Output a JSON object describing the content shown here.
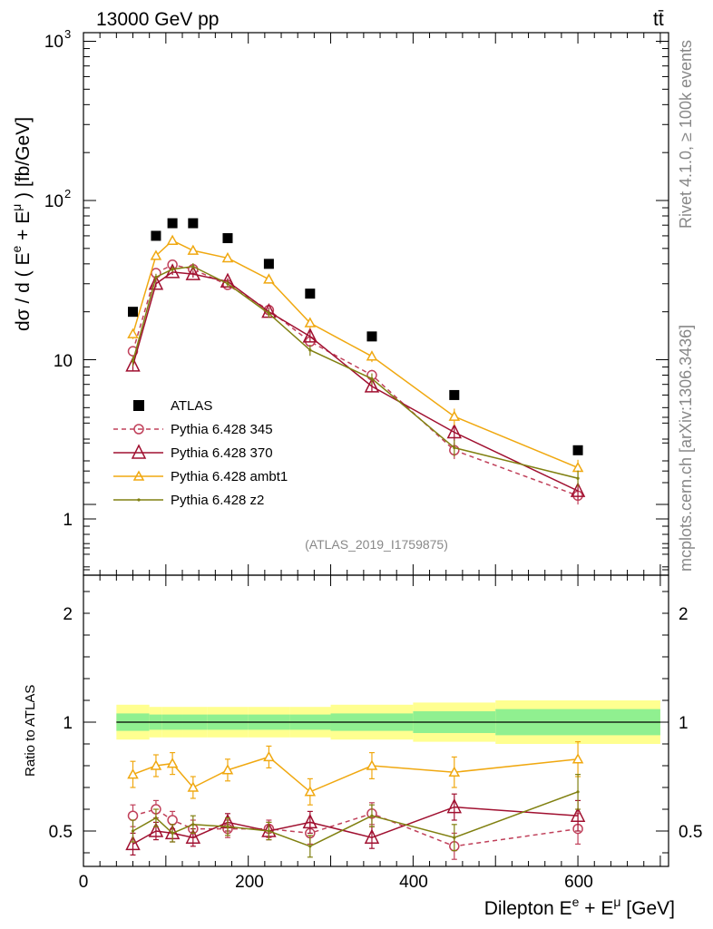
{
  "header": {
    "energy_label": "13000 GeV pp",
    "process_label": "tt̄"
  },
  "side_text": {
    "rivet": "Rivet 4.1.0, ≥ 100k events",
    "mcplots": "mcplots.cern.ch [arXiv:1306.3436]"
  },
  "colors": {
    "atlas": "#000000",
    "p345": "#c0405a",
    "p370": "#a01030",
    "ambt1": "#f0a810",
    "z2": "#808010",
    "band_green": "#90f090",
    "band_yellow": "#ffff90"
  },
  "chart_data": {
    "type": "line",
    "analysis_id": "(ATLAS_2019_I1759875)",
    "xlabel": "Dilepton E^e + E^μ [GeV]",
    "xlabel_main": "Dilepton E",
    "xlabel_sup1": "e",
    "xlabel_plus": " + E",
    "xlabel_sup2": "μ",
    "xlabel_unit": " [GeV]",
    "ylabel": "dσ / d ( E^e + E^μ ) [fb/GeV]",
    "ylabel_pre": "dσ / d ( E",
    "ylabel_sup1": "e",
    "ylabel_mid": " + E",
    "ylabel_sup2": "μ",
    "ylabel_post": " ) [fb/GeV]",
    "ratio_ylabel": "Ratio to ATLAS",
    "xlim": [
      0,
      710
    ],
    "ylim": [
      0.45,
      1100
    ],
    "yscale": "log",
    "ratio_ylim": [
      0.4,
      2.4
    ],
    "x_ticks": [
      0,
      200,
      400,
      600
    ],
    "x_tick_labels": [
      "0",
      "200",
      "400",
      "600"
    ],
    "y_tick_labels": {
      "t1": "1",
      "t10": "10",
      "t100": "10",
      "t100_exp": "2",
      "t1000": "10",
      "t1000_exp": "3"
    },
    "ratio_tick_labels": [
      "0.5",
      "1",
      "2"
    ],
    "ratio_ticks": [
      0.5,
      1,
      2
    ],
    "x": [
      60,
      88,
      108,
      133,
      175,
      225,
      275,
      350,
      450,
      600
    ],
    "bin_edges": [
      40,
      80,
      95,
      120,
      150,
      200,
      250,
      300,
      400,
      500,
      700
    ],
    "atlas": {
      "name": "ATLAS",
      "values": [
        20,
        60,
        72,
        72,
        58,
        40,
        26,
        14,
        6,
        2.7
      ]
    },
    "ratio_band": {
      "inner": [
        0.04,
        0.035,
        0.035,
        0.035,
        0.035,
        0.035,
        0.035,
        0.04,
        0.05,
        0.06
      ],
      "outer": [
        0.08,
        0.07,
        0.07,
        0.07,
        0.07,
        0.07,
        0.07,
        0.08,
        0.09,
        0.1
      ]
    },
    "series": [
      {
        "name": "Pythia 6.428 345",
        "values": [
          11.3,
          35,
          39.5,
          37,
          29.5,
          20.5,
          13,
          8.0,
          2.7,
          1.4
        ],
        "errors": [
          0.07,
          0.05,
          0.04,
          0.05,
          0.05,
          0.06,
          0.08,
          0.08,
          0.12,
          0.12
        ],
        "ratio": [
          0.57,
          0.6,
          0.55,
          0.51,
          0.51,
          0.51,
          0.49,
          0.58,
          0.43,
          0.51
        ],
        "ratio_errors": [
          0.05,
          0.04,
          0.04,
          0.04,
          0.04,
          0.04,
          0.05,
          0.05,
          0.06,
          0.07
        ],
        "color": "#c0405a",
        "dashed": true,
        "marker": "circle"
      },
      {
        "name": "Pythia 6.428 370",
        "values": [
          9.2,
          30,
          35.5,
          34.5,
          31,
          20,
          14,
          6.8,
          3.5,
          1.5
        ],
        "errors": [
          0.07,
          0.05,
          0.04,
          0.05,
          0.05,
          0.06,
          0.08,
          0.08,
          0.12,
          0.12
        ],
        "ratio": [
          0.44,
          0.5,
          0.49,
          0.47,
          0.54,
          0.5,
          0.54,
          0.47,
          0.61,
          0.57
        ],
        "ratio_errors": [
          0.05,
          0.04,
          0.04,
          0.04,
          0.04,
          0.04,
          0.05,
          0.05,
          0.06,
          0.07
        ],
        "color": "#a01030",
        "dashed": false,
        "marker": "triangle-large"
      },
      {
        "name": "Pythia 6.428 ambt1",
        "values": [
          14.5,
          45,
          56,
          48.5,
          43.5,
          32,
          17,
          10.5,
          4.4,
          2.1
        ],
        "errors": [
          0.07,
          0.05,
          0.04,
          0.05,
          0.05,
          0.06,
          0.08,
          0.08,
          0.12,
          0.12
        ],
        "ratio": [
          0.76,
          0.8,
          0.81,
          0.7,
          0.78,
          0.84,
          0.68,
          0.8,
          0.77,
          0.83
        ],
        "ratio_errors": [
          0.06,
          0.05,
          0.05,
          0.05,
          0.05,
          0.05,
          0.06,
          0.06,
          0.07,
          0.08
        ],
        "color": "#f0a810",
        "dashed": false,
        "marker": "triangle"
      },
      {
        "name": "Pythia 6.428 z2",
        "values": [
          9.8,
          33,
          37,
          38.5,
          30,
          19.5,
          11.5,
          7.6,
          2.8,
          1.8
        ],
        "errors": [
          0.07,
          0.05,
          0.04,
          0.05,
          0.05,
          0.06,
          0.08,
          0.08,
          0.12,
          0.12
        ],
        "ratio": [
          0.5,
          0.56,
          0.49,
          0.53,
          0.52,
          0.5,
          0.43,
          0.57,
          0.47,
          0.68
        ],
        "ratio_errors": [
          0.05,
          0.04,
          0.04,
          0.04,
          0.04,
          0.04,
          0.05,
          0.05,
          0.06,
          0.08
        ],
        "color": "#808010",
        "dashed": false,
        "marker": "dot"
      }
    ]
  }
}
